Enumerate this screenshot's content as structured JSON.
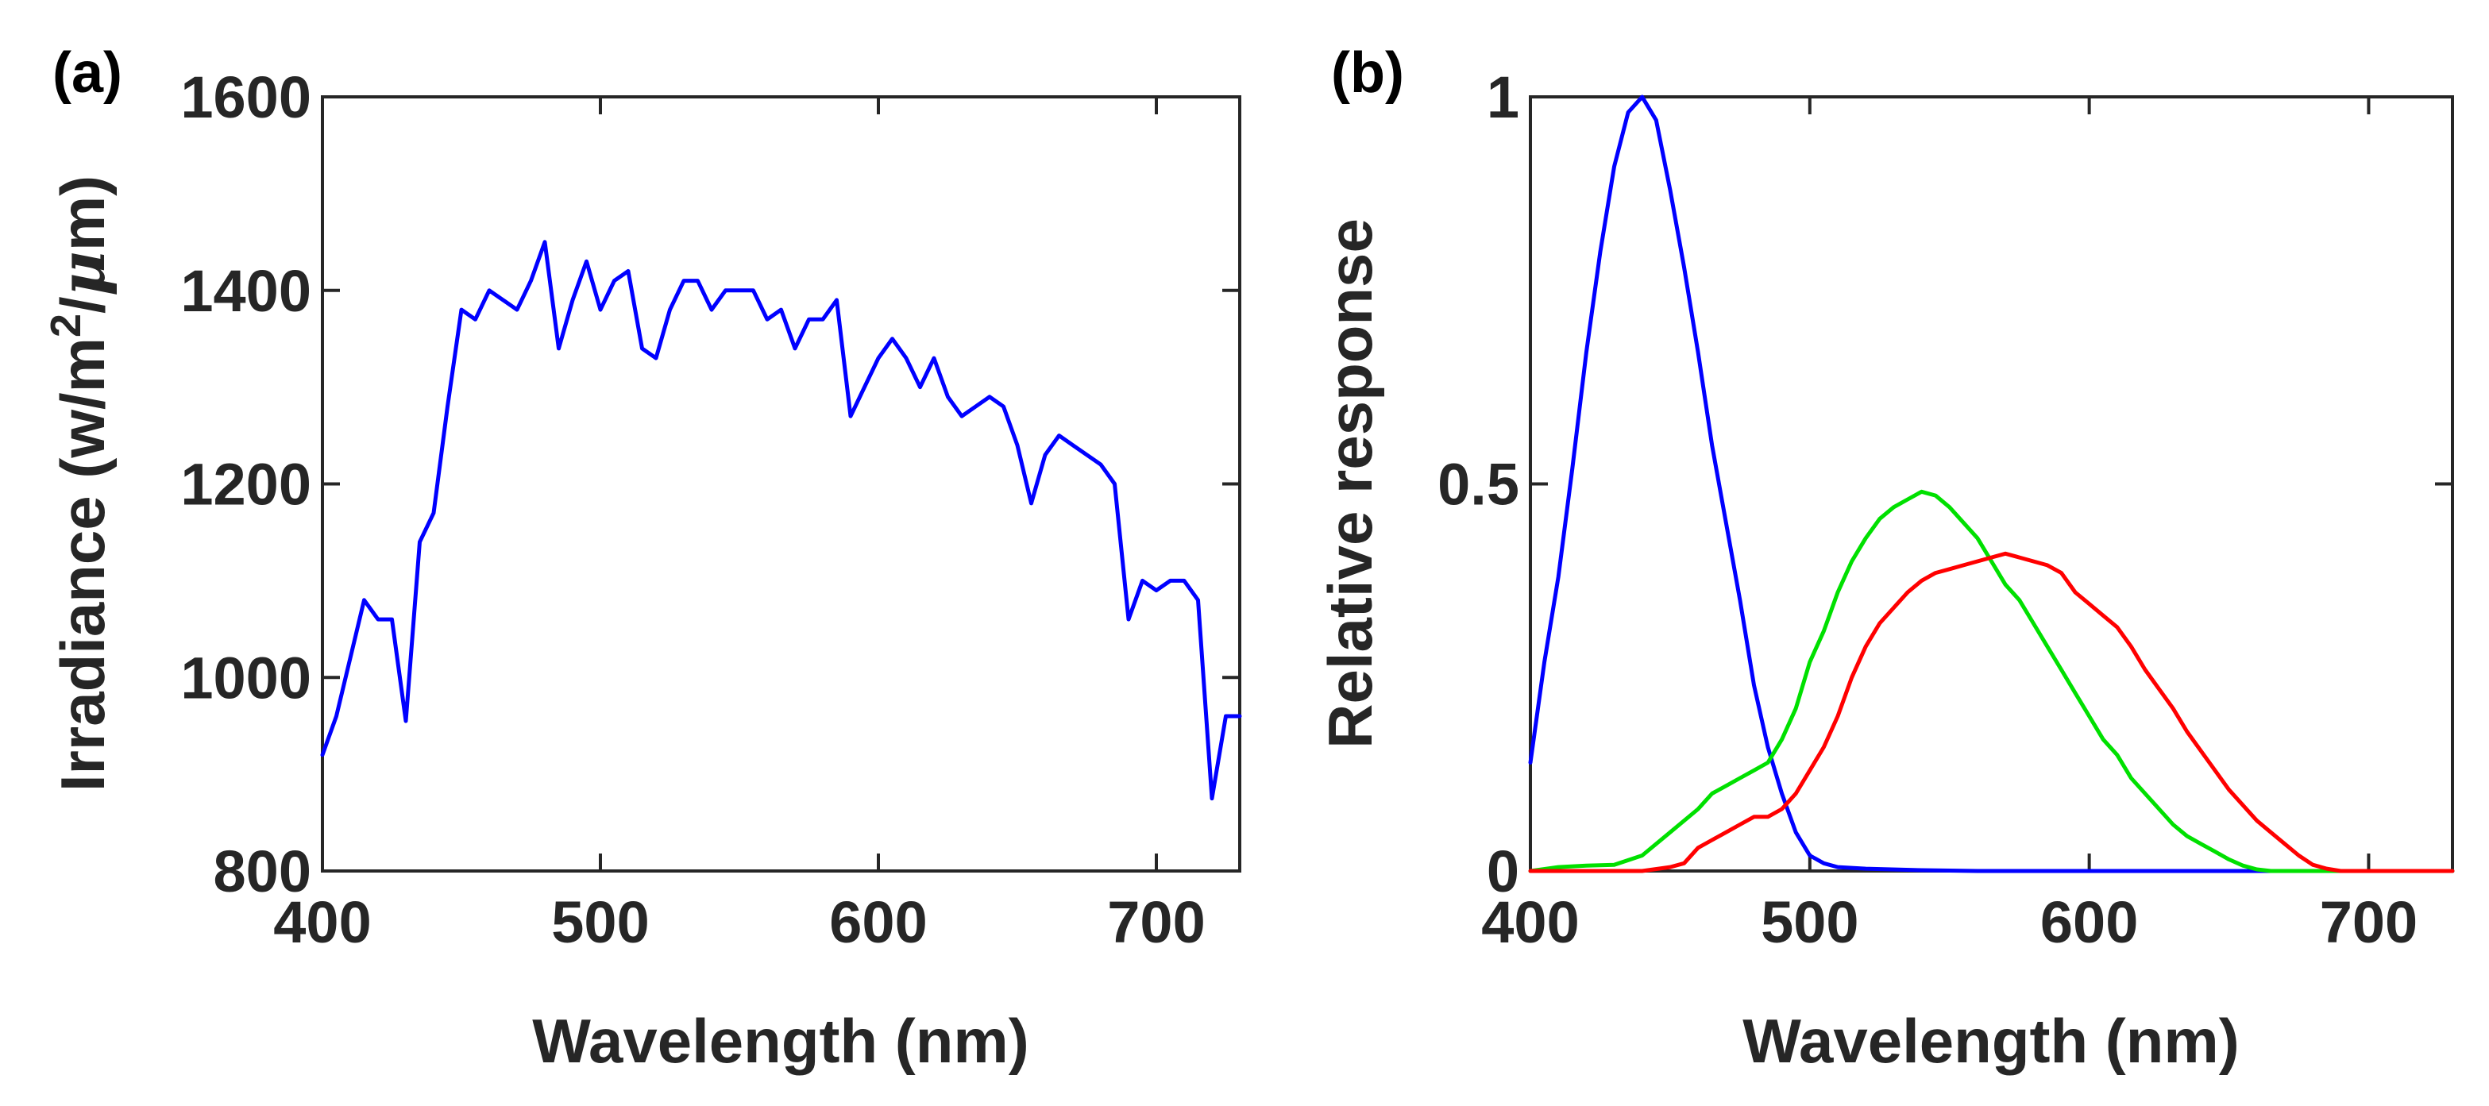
{
  "chart_data": [
    {
      "type": "line",
      "panel_label": "(a)",
      "xlabel": "Wavelength (nm)",
      "ylabel_main": "Irradiance (w/m",
      "ylabel_sup": "2",
      "ylabel_mid": "/",
      "ylabel_mu": "μ",
      "ylabel_end": "m)",
      "xlim": [
        400,
        730
      ],
      "ylim": [
        800,
        1600
      ],
      "xticks": [
        400,
        500,
        600,
        700
      ],
      "yticks": [
        800,
        1000,
        1200,
        1400,
        1600
      ],
      "grid": false,
      "series": [
        {
          "name": "irradiance",
          "color": "#0000ff",
          "x": [
            400,
            405,
            410,
            415,
            420,
            425,
            430,
            435,
            440,
            445,
            450,
            455,
            460,
            465,
            470,
            475,
            480,
            485,
            490,
            495,
            500,
            505,
            510,
            515,
            520,
            525,
            530,
            535,
            540,
            545,
            550,
            555,
            560,
            565,
            570,
            575,
            580,
            585,
            590,
            595,
            600,
            605,
            610,
            615,
            620,
            625,
            630,
            635,
            640,
            645,
            650,
            655,
            660,
            665,
            670,
            675,
            680,
            685,
            690,
            695,
            700,
            705,
            710,
            715,
            720,
            725,
            730
          ],
          "y": [
            920,
            960,
            1020,
            1080,
            1060,
            1060,
            955,
            1140,
            1170,
            1280,
            1380,
            1370,
            1400,
            1390,
            1380,
            1410,
            1450,
            1340,
            1390,
            1430,
            1380,
            1410,
            1420,
            1340,
            1330,
            1380,
            1410,
            1410,
            1380,
            1400,
            1400,
            1400,
            1370,
            1380,
            1340,
            1370,
            1370,
            1390,
            1270,
            1300,
            1330,
            1350,
            1330,
            1300,
            1330,
            1290,
            1270,
            1280,
            1290,
            1280,
            1240,
            1180,
            1230,
            1250,
            1240,
            1230,
            1220,
            1200,
            1060,
            1100,
            1090,
            1100,
            1100,
            1080,
            875,
            960,
            960
          ]
        }
      ]
    },
    {
      "type": "line",
      "panel_label": "(b)",
      "xlabel": "Wavelength (nm)",
      "ylabel": "Relative response",
      "xlim": [
        400,
        730
      ],
      "ylim": [
        0,
        1
      ],
      "xticks": [
        400,
        500,
        600,
        700
      ],
      "yticks": [
        0,
        0.5,
        1
      ],
      "ytick_labels": [
        "0",
        "0.5",
        "1"
      ],
      "grid": false,
      "series": [
        {
          "name": "blue",
          "color": "#0000ff",
          "x": [
            400,
            405,
            410,
            415,
            420,
            425,
            430,
            435,
            440,
            445,
            450,
            455,
            460,
            465,
            470,
            475,
            480,
            485,
            490,
            495,
            500,
            505,
            510,
            520,
            540,
            560,
            600,
            650,
            700,
            730
          ],
          "y": [
            0.14,
            0.27,
            0.38,
            0.52,
            0.67,
            0.8,
            0.91,
            0.98,
            1.0,
            0.97,
            0.88,
            0.78,
            0.67,
            0.55,
            0.45,
            0.35,
            0.24,
            0.16,
            0.1,
            0.05,
            0.02,
            0.01,
            0.005,
            0.003,
            0.001,
            0.0,
            0.0,
            0.0,
            0.0,
            0.0
          ]
        },
        {
          "name": "green",
          "color": "#00e000",
          "x": [
            400,
            410,
            420,
            430,
            440,
            450,
            460,
            465,
            470,
            475,
            480,
            485,
            490,
            495,
            500,
            505,
            510,
            515,
            520,
            525,
            530,
            535,
            540,
            545,
            550,
            555,
            560,
            565,
            570,
            575,
            580,
            585,
            590,
            595,
            600,
            605,
            610,
            615,
            620,
            625,
            630,
            635,
            640,
            645,
            650,
            655,
            660,
            665,
            670,
            700,
            730
          ],
          "y": [
            0.0,
            0.005,
            0.007,
            0.008,
            0.02,
            0.05,
            0.08,
            0.1,
            0.11,
            0.12,
            0.13,
            0.14,
            0.17,
            0.21,
            0.27,
            0.31,
            0.36,
            0.4,
            0.43,
            0.455,
            0.47,
            0.48,
            0.49,
            0.485,
            0.47,
            0.45,
            0.43,
            0.4,
            0.37,
            0.35,
            0.32,
            0.29,
            0.26,
            0.23,
            0.2,
            0.17,
            0.15,
            0.12,
            0.1,
            0.08,
            0.06,
            0.045,
            0.035,
            0.025,
            0.015,
            0.007,
            0.002,
            0.0,
            0.0,
            0.0,
            0.0
          ]
        },
        {
          "name": "red",
          "color": "#ff0000",
          "x": [
            400,
            440,
            450,
            455,
            460,
            465,
            470,
            475,
            480,
            485,
            490,
            495,
            500,
            505,
            510,
            515,
            520,
            525,
            530,
            535,
            540,
            545,
            550,
            555,
            560,
            565,
            570,
            575,
            580,
            585,
            590,
            595,
            600,
            605,
            610,
            615,
            620,
            625,
            630,
            635,
            640,
            645,
            650,
            655,
            660,
            665,
            670,
            675,
            680,
            685,
            690,
            730
          ],
          "y": [
            0.0,
            0.0,
            0.005,
            0.01,
            0.03,
            0.04,
            0.05,
            0.06,
            0.07,
            0.07,
            0.08,
            0.1,
            0.13,
            0.16,
            0.2,
            0.25,
            0.29,
            0.32,
            0.34,
            0.36,
            0.375,
            0.385,
            0.39,
            0.395,
            0.4,
            0.405,
            0.41,
            0.405,
            0.4,
            0.395,
            0.385,
            0.36,
            0.345,
            0.33,
            0.315,
            0.29,
            0.26,
            0.235,
            0.21,
            0.18,
            0.155,
            0.13,
            0.105,
            0.085,
            0.065,
            0.05,
            0.035,
            0.02,
            0.008,
            0.003,
            0.0,
            0.0
          ]
        }
      ]
    }
  ]
}
